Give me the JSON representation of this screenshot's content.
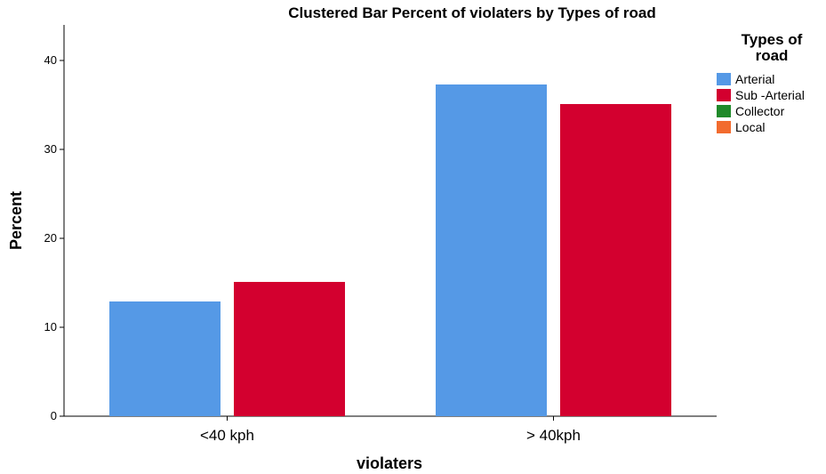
{
  "chart_data": {
    "type": "bar",
    "title": "Clustered Bar Percent of violaters by Types of road",
    "xlabel": "violaters",
    "ylabel": "Percent",
    "categories": [
      "<40 kph",
      "> 40kph"
    ],
    "series": [
      {
        "name": "Arterial",
        "values": [
          12.9,
          37.3
        ],
        "color": "#5599e6"
      },
      {
        "name": "Sub -Arterial",
        "values": [
          15.1,
          35.1
        ],
        "color": "#d3002f"
      },
      {
        "name": "Collector",
        "values": [
          0,
          0
        ],
        "color": "#1f8a2a"
      },
      {
        "name": "Local",
        "values": [
          0,
          0
        ],
        "color": "#f26b2e"
      }
    ],
    "ylim": [
      0,
      44
    ],
    "yticks": [
      "0",
      "10",
      "20",
      "30",
      "40"
    ],
    "legend": {
      "title_line1": "Types of",
      "title_line2": "road",
      "placement": "right"
    },
    "grid": false
  }
}
